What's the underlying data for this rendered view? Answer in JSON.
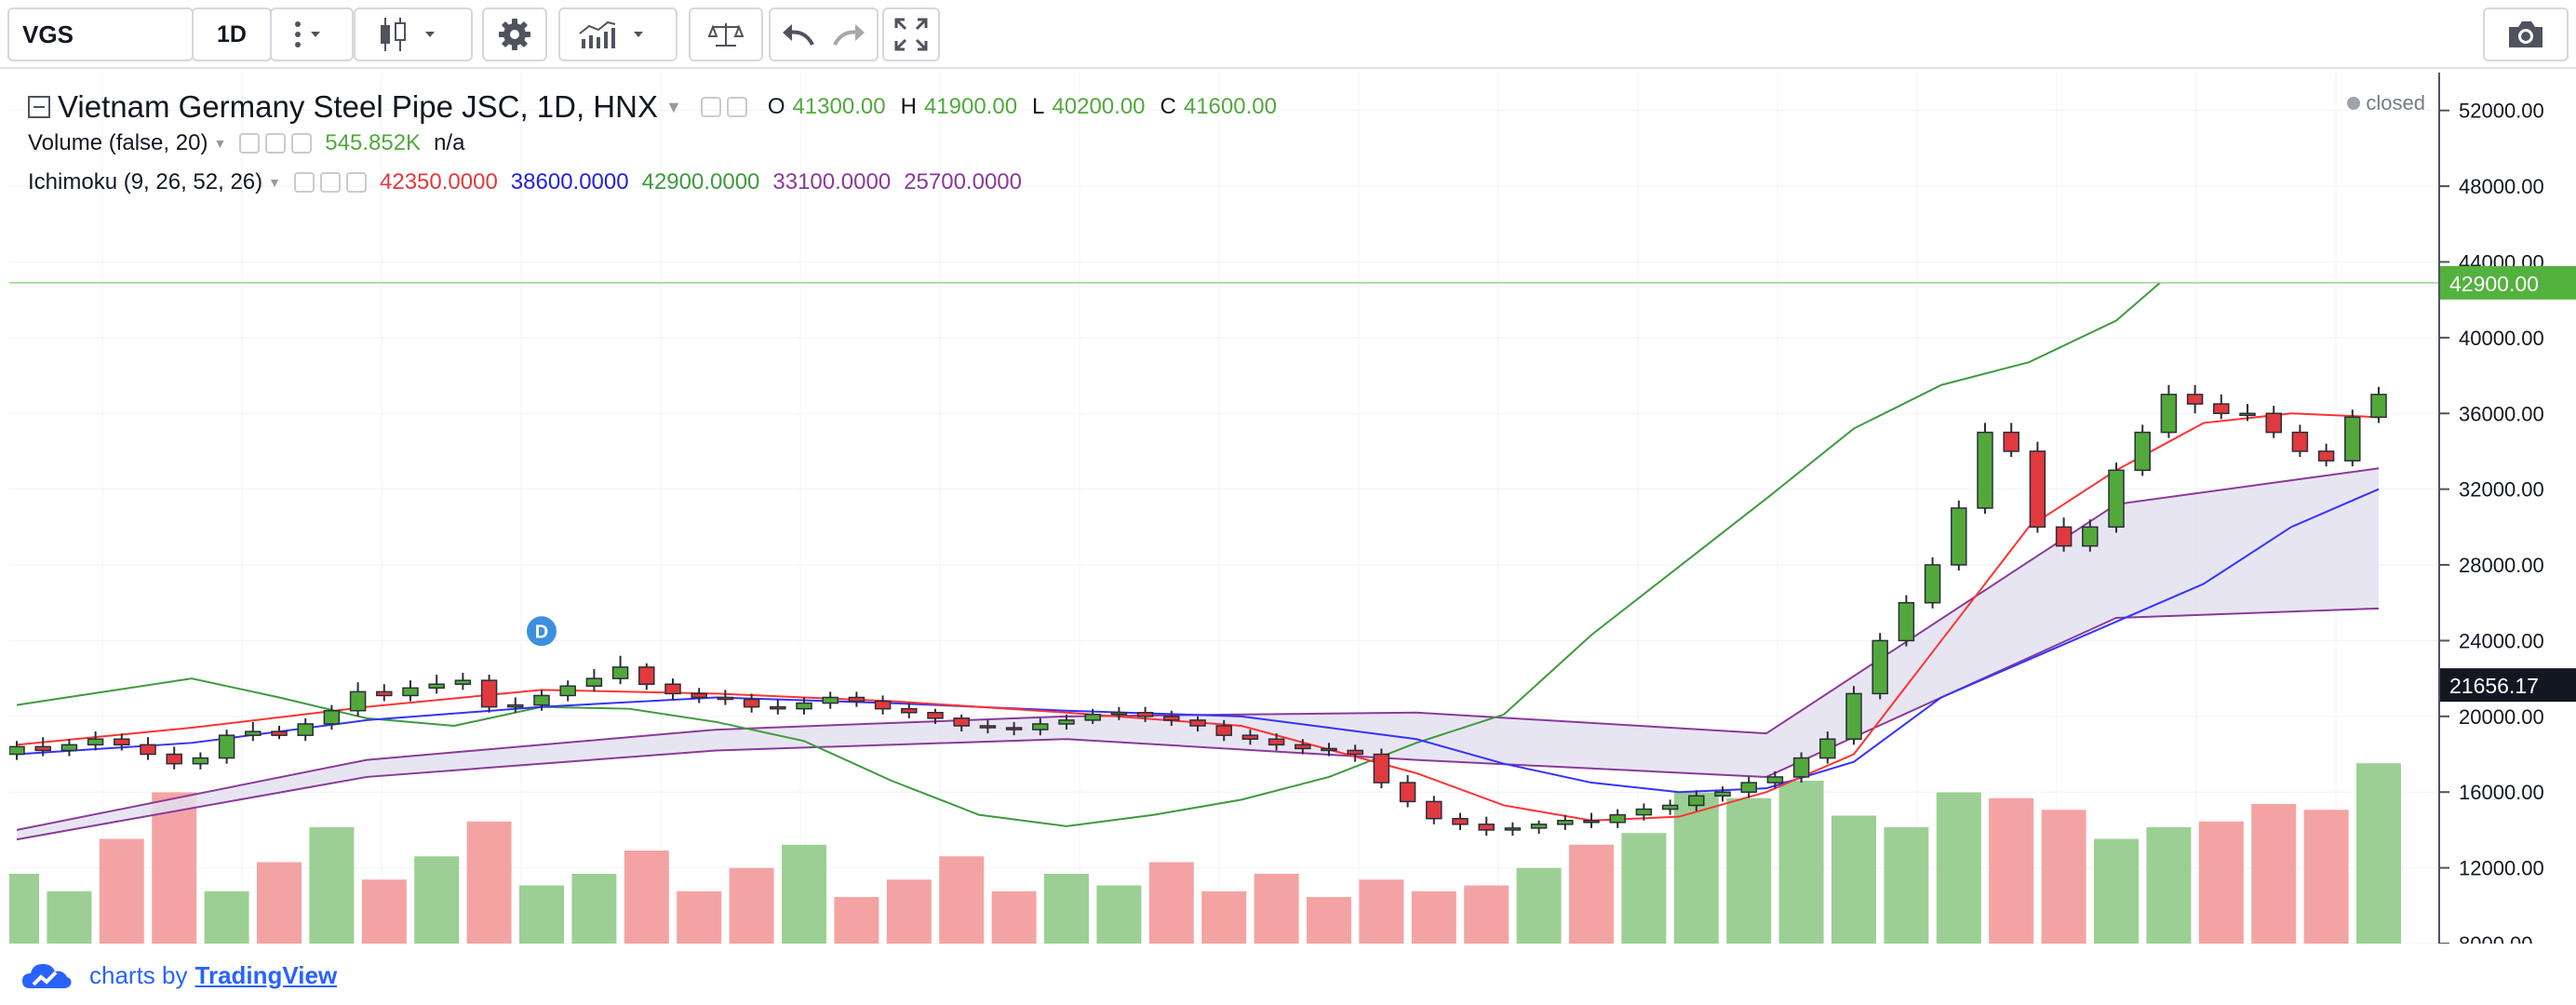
{
  "toolbar": {
    "symbol": "VGS",
    "interval": "1D",
    "icons": [
      "more-icon",
      "chevron-down-icon",
      "candles-icon",
      "chevron-down-icon",
      "gear-icon",
      "indicators-icon",
      "chevron-down-icon",
      "compare-icon",
      "undo-icon",
      "redo-icon",
      "fullscreen-icon",
      "camera-icon"
    ]
  },
  "legend": {
    "title": "Vietnam Germany Steel Pipe JSC, 1D, HNX",
    "o_label": "O",
    "o": "41300.00",
    "h_label": "H",
    "h": "41900.00",
    "l_label": "L",
    "l": "40200.00",
    "c_label": "C",
    "c": "41600.00",
    "status": "closed",
    "volume_label": "Volume (false, 20)",
    "volume_value": "545.852K",
    "volume_ma": "n/a",
    "ichimoku_label": "Ichimoku (9, 26, 52, 26)",
    "ichimoku_values": [
      "42350.0000",
      "38600.0000",
      "42900.0000",
      "33100.0000",
      "25700.0000"
    ]
  },
  "colors": {
    "up": "#53a83c",
    "down": "#e03a3e",
    "up_vol": "#9ccf94",
    "down_vol": "#f4a3a3",
    "tenkan": "#ff3333",
    "kijun": "#3333ff",
    "chikou": "#3e9a3e",
    "span": "#8a3a9a",
    "cloud": "#e4e1f0",
    "price_label": "#53b23e",
    "crosshair_label": "#131722",
    "brand": "#2962ff"
  },
  "brand": {
    "prefix": "charts by",
    "name": "TradingView"
  },
  "event_marker": "D",
  "chart_data": {
    "type": "candlestick",
    "title": "Vietnam Germany Steel Pipe JSC, 1D, HNX",
    "y_ticks": [
      "52000.00",
      "48000.00",
      "44000.00",
      "40000.00",
      "36000.00",
      "32000.00",
      "28000.00",
      "24000.00",
      "20000.00",
      "16000.00",
      "12000.00",
      "8000.00"
    ],
    "ylim": [
      8000,
      54000
    ],
    "last_price_label": "42900.00",
    "crosshair_label": "21656.17",
    "candles": {
      "x": [
        0,
        3,
        6,
        9,
        12,
        15,
        18,
        21,
        24,
        27,
        30,
        33,
        36,
        39,
        42,
        45,
        48,
        51,
        54,
        57,
        60,
        63,
        66,
        69,
        72,
        75,
        78,
        81,
        84,
        87,
        90,
        93,
        96,
        99,
        102,
        105,
        108,
        111,
        114,
        117,
        120,
        123,
        126,
        129,
        132,
        135,
        138,
        141,
        144,
        147,
        150,
        153,
        156,
        159,
        162,
        165,
        168,
        171,
        174,
        177,
        180,
        183,
        186,
        189,
        192,
        195,
        198,
        201,
        204,
        207,
        210,
        213,
        216,
        219,
        222,
        225,
        228,
        231,
        234,
        237,
        240,
        243,
        246,
        249,
        252,
        255,
        258,
        261,
        264,
        267,
        270
      ],
      "open": [
        18000,
        18400,
        18200,
        18500,
        18800,
        18500,
        18000,
        17500,
        17800,
        19000,
        19200,
        19000,
        19600,
        20300,
        21300,
        21100,
        21500,
        21700,
        21900,
        20500,
        20600,
        21100,
        21600,
        22000,
        22600,
        21700,
        21200,
        21000,
        20900,
        20500,
        20400,
        20700,
        21000,
        20800,
        20400,
        20200,
        19900,
        19500,
        19400,
        19300,
        19600,
        19800,
        20100,
        20200,
        20000,
        19800,
        19500,
        19000,
        18800,
        18500,
        18300,
        18200,
        18000,
        16500,
        15500,
        14600,
        14300,
        14000,
        14100,
        14300,
        14500,
        14400,
        14800,
        15100,
        15300,
        15800,
        16000,
        16500,
        16800,
        17800,
        18800,
        21200,
        24000,
        26000,
        28000,
        31000,
        35000,
        34000,
        30000,
        29000,
        30000,
        33000,
        35000,
        37000,
        36500,
        36000,
        36000,
        35000,
        34000,
        33500,
        35800
      ],
      "close": [
        18400,
        18200,
        18500,
        18800,
        18500,
        18000,
        17500,
        17800,
        19000,
        19200,
        19000,
        19600,
        20300,
        21300,
        21100,
        21500,
        21700,
        21900,
        20500,
        20600,
        21100,
        21600,
        22000,
        22600,
        21700,
        21200,
        21000,
        20900,
        20500,
        20400,
        20700,
        21000,
        20800,
        20400,
        20200,
        19900,
        19500,
        19400,
        19300,
        19600,
        19800,
        20100,
        20200,
        20000,
        19800,
        19500,
        19000,
        18800,
        18500,
        18300,
        18200,
        18000,
        16500,
        15500,
        14600,
        14300,
        14000,
        14100,
        14300,
        14500,
        14400,
        14800,
        15100,
        15300,
        15800,
        16000,
        16500,
        16800,
        17800,
        18800,
        21200,
        24000,
        26000,
        28000,
        31000,
        35000,
        34000,
        30000,
        29000,
        30000,
        33000,
        35000,
        37000,
        36500,
        36000,
        36000,
        35000,
        34000,
        33500,
        35800,
        37000
      ],
      "high": [
        18700,
        18900,
        18800,
        19200,
        19100,
        18900,
        18400,
        18100,
        19300,
        19700,
        19500,
        19900,
        20600,
        21800,
        21700,
        21900,
        22200,
        22300,
        22200,
        21000,
        21400,
        21900,
        22500,
        23200,
        22800,
        22000,
        21500,
        21400,
        21200,
        20900,
        21000,
        21300,
        21300,
        21100,
        20700,
        20400,
        20100,
        19800,
        19700,
        19900,
        20100,
        20400,
        20500,
        20500,
        20300,
        20000,
        19800,
        19300,
        19100,
        18800,
        18600,
        18500,
        18300,
        16900,
        15800,
        14900,
        14700,
        14400,
        14500,
        14800,
        14900,
        15100,
        15400,
        15600,
        16100,
        16300,
        16800,
        17100,
        18100,
        19200,
        21600,
        24400,
        26400,
        28400,
        31400,
        35500,
        35500,
        34500,
        30500,
        30400,
        33400,
        35400,
        37500,
        37500,
        37000,
        36500,
        36400,
        35400,
        34400,
        36200,
        37400
      ],
      "low": [
        17700,
        17900,
        17900,
        18200,
        18200,
        17700,
        17200,
        17200,
        17500,
        18700,
        18800,
        18700,
        19300,
        20000,
        20800,
        20800,
        21200,
        21400,
        20200,
        20200,
        20300,
        20800,
        21300,
        21700,
        21400,
        20900,
        20700,
        20600,
        20200,
        20100,
        20100,
        20400,
        20500,
        20100,
        19900,
        19600,
        19200,
        19100,
        19000,
        19000,
        19300,
        19600,
        19800,
        19700,
        19500,
        19200,
        18700,
        18500,
        18200,
        18000,
        17900,
        17600,
        16200,
        15200,
        14300,
        14000,
        13700,
        13700,
        13800,
        14000,
        14100,
        14100,
        14500,
        14800,
        15000,
        15500,
        15700,
        16200,
        16500,
        17500,
        18500,
        20900,
        23700,
        25700,
        27700,
        30700,
        33700,
        29700,
        28700,
        28700,
        29700,
        32700,
        34700,
        36000,
        35700,
        35600,
        34700,
        33700,
        33200,
        33200,
        35500
      ]
    },
    "volume": {
      "x": [
        0,
        6,
        12,
        18,
        24,
        30,
        36,
        42,
        48,
        54,
        60,
        66,
        72,
        78,
        84,
        90,
        96,
        102,
        108,
        114,
        120,
        126,
        132,
        138,
        144,
        150,
        156,
        162,
        168,
        174,
        180,
        186,
        192,
        198,
        204,
        210,
        216,
        222,
        228,
        234,
        240,
        246,
        252,
        258,
        264,
        270
      ],
      "values": [
        120,
        90,
        180,
        260,
        90,
        140,
        200,
        110,
        150,
        210,
        100,
        120,
        160,
        90,
        130,
        170,
        80,
        110,
        150,
        90,
        120,
        100,
        140,
        90,
        120,
        80,
        110,
        90,
        100,
        130,
        170,
        190,
        260,
        250,
        280,
        220,
        200,
        260,
        250,
        230,
        180,
        200,
        210,
        240,
        230,
        310
      ]
    },
    "tenkan_sen": {
      "x": [
        0,
        20,
        40,
        60,
        80,
        100,
        120,
        140,
        160,
        170,
        180,
        190,
        200,
        210,
        220,
        230,
        240,
        250,
        260,
        270
      ],
      "y": [
        18500,
        19400,
        20500,
        21400,
        21200,
        20800,
        20200,
        19500,
        17000,
        15300,
        14500,
        14700,
        16000,
        18000,
        24000,
        30000,
        33000,
        35500,
        36000,
        35800
      ]
    },
    "kijun_sen": {
      "x": [
        0,
        20,
        40,
        60,
        80,
        100,
        120,
        140,
        160,
        170,
        180,
        190,
        200,
        210,
        220,
        230,
        240,
        250,
        260,
        270
      ],
      "y": [
        18000,
        18600,
        19800,
        20500,
        21000,
        20700,
        20300,
        20000,
        18800,
        17500,
        16500,
        16000,
        16200,
        17600,
        21000,
        23000,
        25000,
        27000,
        30000,
        32000
      ]
    },
    "chikou_span": {
      "x": [
        0,
        10,
        20,
        30,
        40,
        50,
        60,
        70,
        80,
        90,
        100,
        110,
        120,
        130,
        140,
        150,
        160,
        170,
        180,
        190,
        200,
        210,
        220,
        230,
        240,
        245
      ],
      "y": [
        20600,
        21300,
        22000,
        21000,
        19900,
        19500,
        20500,
        20400,
        19700,
        18700,
        16600,
        14800,
        14200,
        14800,
        15600,
        16800,
        18600,
        20100,
        24300,
        27900,
        31500,
        35200,
        37500,
        38700,
        40900,
        42900
      ]
    },
    "senkou_span_a": {
      "x": [
        0,
        40,
        80,
        120,
        160,
        200,
        240,
        270
      ],
      "y": [
        14000,
        17700,
        19300,
        20000,
        20200,
        19100,
        31200,
        33100
      ]
    },
    "senkou_span_b": {
      "x": [
        0,
        40,
        80,
        120,
        160,
        200,
        240,
        270
      ],
      "y": [
        13500,
        16800,
        18200,
        18800,
        17700,
        16800,
        25200,
        25700
      ]
    }
  }
}
